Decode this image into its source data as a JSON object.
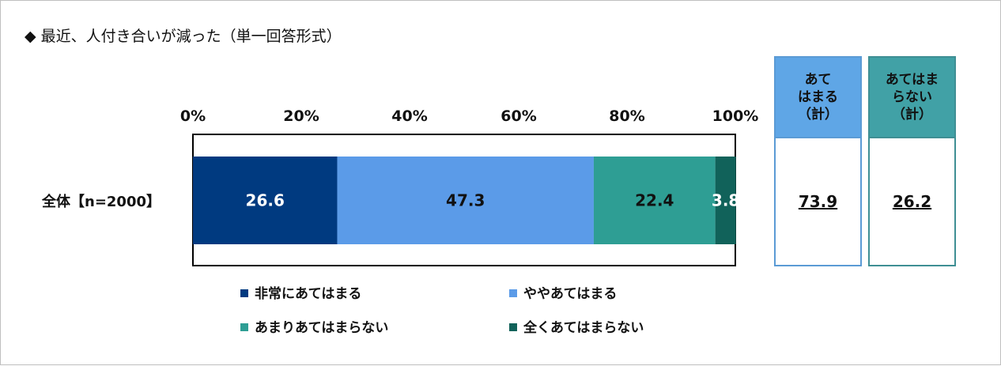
{
  "title": "最近、人付き合いが減った（単一回答形式）",
  "title_marker": "◆",
  "chart_data": {
    "type": "bar",
    "orientation": "horizontal-stacked-100",
    "x_ticks": [
      "0%",
      "20%",
      "40%",
      "60%",
      "80%",
      "100%"
    ],
    "xlim": [
      0,
      100
    ],
    "categories": [
      "全体【n=2000】"
    ],
    "series": [
      {
        "name": "非常にあてはまる",
        "values": [
          26.6
        ],
        "color": "#003a80",
        "label_color": "#ffffff"
      },
      {
        "name": "ややあてはまる",
        "values": [
          47.3
        ],
        "color": "#5b9be8",
        "label_color": "#111111"
      },
      {
        "name": "あまりあてはまらない",
        "values": [
          22.4
        ],
        "color": "#2e9e94",
        "label_color": "#111111"
      },
      {
        "name": "全くあてはまらない",
        "values": [
          3.8
        ],
        "color": "#11625a",
        "label_color": "#ffffff"
      }
    ],
    "labels": [
      "26.6",
      "47.3",
      "22.4",
      "3.8"
    ],
    "legend_position": "bottom"
  },
  "summary": {
    "agree": {
      "head_lines": [
        "あて",
        "はまる",
        "（計）"
      ],
      "value": "73.9",
      "color": "#5fa6e6"
    },
    "disagree": {
      "head_lines": [
        "あてはま",
        "らない",
        "（計）"
      ],
      "value": "26.2",
      "color": "#41a1a6"
    }
  }
}
